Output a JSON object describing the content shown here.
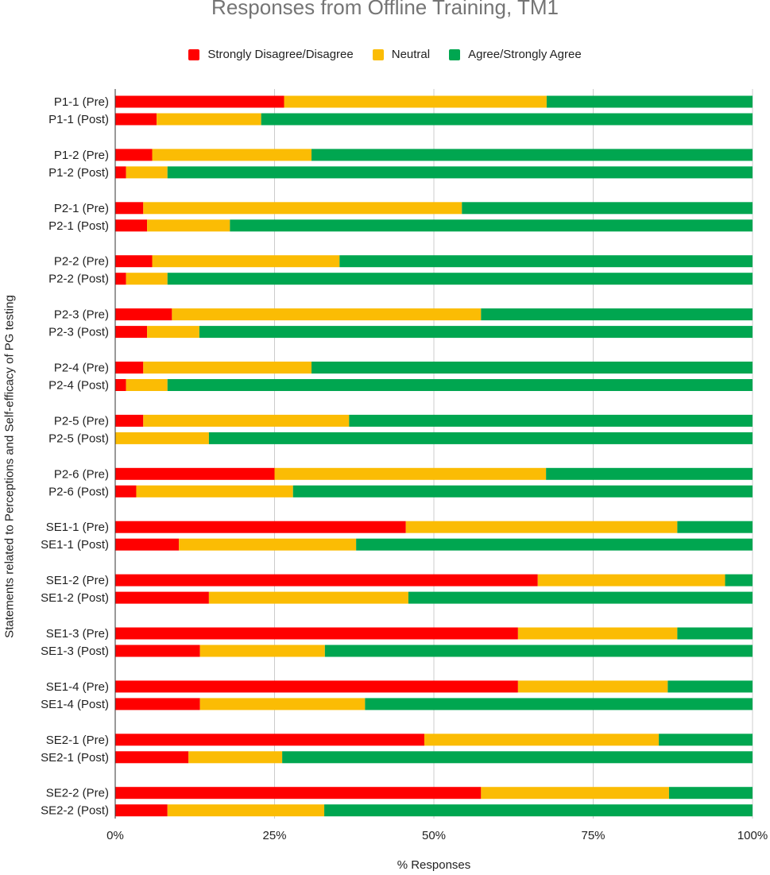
{
  "chart_data": {
    "type": "bar",
    "orientation": "horizontal",
    "stacked": "percent",
    "title": "Responses from Offline Training, TM1",
    "xlabel": "% Responses",
    "ylabel": "Statements related to Perceptions and Self-efficacy of PG testing",
    "xlim": [
      0,
      100
    ],
    "x_ticks": [
      "0%",
      "25%",
      "50%",
      "75%",
      "100%"
    ],
    "grid": true,
    "legend_position": "top",
    "categories": [
      "P1-1 (Pre)",
      "P1-1 (Post)",
      "P1-2 (Pre)",
      "P1-2 (Post)",
      "P2-1 (Pre)",
      "P2-1 (Post)",
      "P2-2 (Pre)",
      "P2-2 (Post)",
      "P2-3 (Pre)",
      "P2-3 (Post)",
      "P2-4 (Pre)",
      "P2-4 (Post)",
      "P2-5 (Pre)",
      "P2-5 (Post)",
      "P2-6 (Pre)",
      "P2-6 (Post)",
      "SE1-1 (Pre)",
      "SE1-1 (Post)",
      "SE1-2 (Pre)",
      "SE1-2 (Post)",
      "SE1-3 (Pre)",
      "SE1-3 (Post)",
      "SE1-4 (Pre)",
      "SE1-4 (Post)",
      "SE2-1 (Pre)",
      "SE2-1 (Post)",
      "SE2-2 (Pre)",
      "SE2-2 (Post)"
    ],
    "series": [
      {
        "name": "Strongly Disagree/Disagree",
        "color": "#ff0000",
        "values": [
          26.5,
          6.5,
          5.8,
          1.7,
          4.4,
          5.0,
          5.8,
          1.7,
          8.9,
          5.0,
          4.4,
          1.7,
          4.4,
          0,
          25.0,
          3.3,
          45.6,
          10.0,
          66.3,
          14.7,
          63.2,
          13.3,
          63.2,
          13.3,
          48.5,
          11.5,
          57.4,
          8.2
        ]
      },
      {
        "name": "Neutral",
        "color": "#fbbc04",
        "values": [
          41.2,
          16.4,
          25.0,
          6.5,
          50.0,
          13.0,
          29.4,
          6.5,
          48.5,
          8.2,
          26.4,
          6.5,
          32.3,
          14.7,
          42.6,
          24.6,
          42.6,
          27.8,
          29.4,
          31.3,
          25.0,
          19.6,
          23.5,
          25.9,
          36.8,
          14.7,
          29.5,
          24.6
        ]
      },
      {
        "name": "Agree/Strongly Agree",
        "color": "#00a650",
        "values": [
          32.3,
          77.1,
          69.2,
          91.8,
          45.6,
          82.0,
          64.8,
          91.8,
          42.6,
          86.8,
          69.2,
          91.8,
          63.3,
          85.3,
          32.4,
          72.1,
          11.8,
          62.2,
          4.3,
          54.0,
          11.8,
          67.1,
          13.3,
          60.8,
          14.7,
          73.8,
          13.1,
          67.2
        ]
      }
    ]
  }
}
